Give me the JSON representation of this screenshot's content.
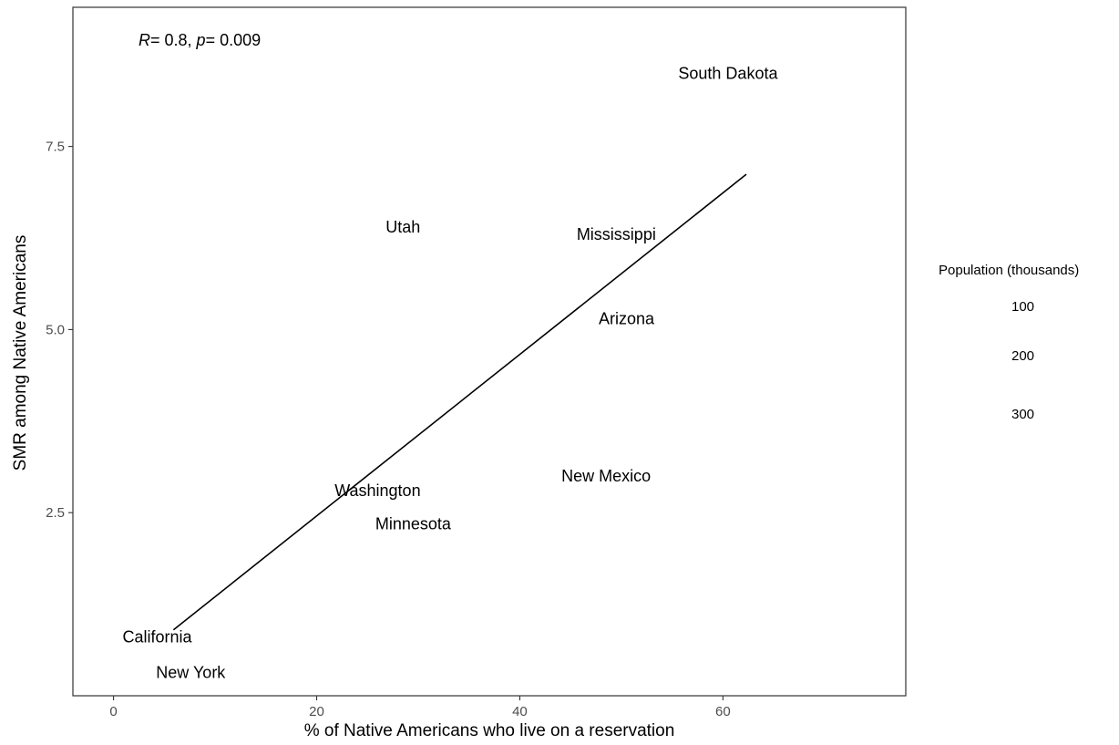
{
  "chart_data": {
    "type": "scatter",
    "xlabel": "% of Native Americans who live on a reservation",
    "ylabel": "SMR among Native Americans",
    "xlim": [
      -4,
      78
    ],
    "ylim": [
      0.0,
      9.4
    ],
    "x_ticks": [
      0,
      20,
      40,
      60
    ],
    "y_ticks": [
      2.5,
      5.0,
      7.5
    ],
    "y_tick_labels": [
      "2.5",
      "5.0",
      "7.5"
    ],
    "grid": false,
    "points": [
      {
        "label": "South Dakota",
        "x": 60.5,
        "y": 8.5
      },
      {
        "label": "Utah",
        "x": 28.5,
        "y": 6.4
      },
      {
        "label": "Mississippi",
        "x": 49.5,
        "y": 6.3
      },
      {
        "label": "Arizona",
        "x": 50.5,
        "y": 5.15
      },
      {
        "label": "New Mexico",
        "x": 48.5,
        "y": 3.0
      },
      {
        "label": "Washington",
        "x": 26.0,
        "y": 2.8
      },
      {
        "label": "Minnesota",
        "x": 29.5,
        "y": 2.35
      },
      {
        "label": "California",
        "x": 4.3,
        "y": 0.8
      },
      {
        "label": "New York",
        "x": 7.6,
        "y": 0.32
      }
    ],
    "regression_line": {
      "x": [
        5.9,
        62.3
      ],
      "y": [
        0.9,
        7.12
      ]
    },
    "annotation": {
      "r_label": "R",
      "r_value": "= 0.8, ",
      "p_label": "p",
      "p_value": "= 0.009"
    },
    "legend": {
      "title": "Population (thousands)",
      "placement": "right",
      "entries": [
        "100",
        "200",
        "300"
      ]
    }
  }
}
